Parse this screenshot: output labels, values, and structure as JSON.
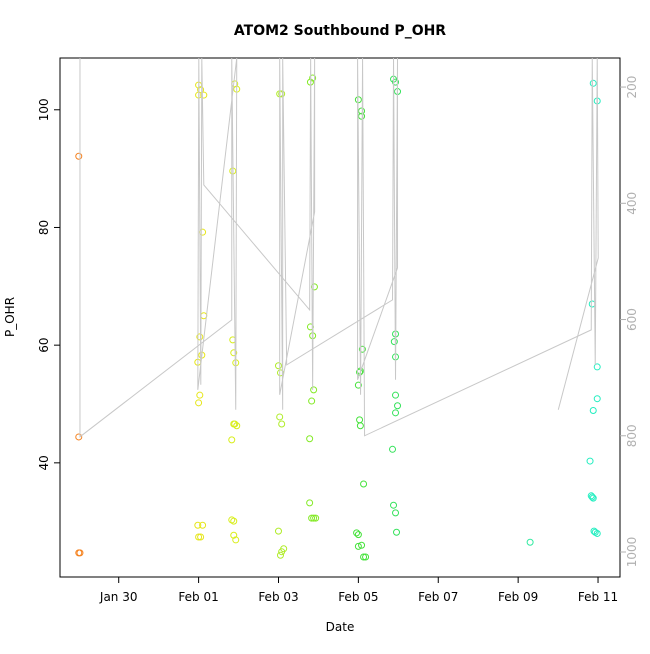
{
  "chart_data": {
    "type": "scatter",
    "title": "ATOM2 Southbound P_OHR",
    "x_label": "Date",
    "y_label": "P_OHR",
    "xlim": [
      28.53,
      42.55
    ],
    "ylim": [
      20.6,
      108.8
    ],
    "y2lim": [
      1043,
      150
    ],
    "xticks": [
      {
        "value": 30,
        "label": "Jan 30"
      },
      {
        "value": 32,
        "label": "Feb 01"
      },
      {
        "value": 34,
        "label": "Feb 03"
      },
      {
        "value": 36,
        "label": "Feb 05"
      },
      {
        "value": 38,
        "label": "Feb 07"
      },
      {
        "value": 40,
        "label": "Feb 09"
      },
      {
        "value": 42,
        "label": "Feb 11"
      }
    ],
    "yticks": [
      40,
      60,
      80,
      100
    ],
    "y2ticks": [
      200,
      400,
      600,
      800,
      1000
    ],
    "series": [
      {
        "type": "scatter",
        "x": [
          29.0,
          29.0,
          29.0,
          29.03,
          32.0,
          32.05,
          32.0,
          32.13,
          32.1,
          32.13,
          32.03,
          32.08,
          31.98,
          32.03,
          32.0,
          31.98,
          32.1,
          32.0,
          32.05,
          32.905,
          32.955,
          32.855,
          32.855,
          32.88,
          32.93,
          32.88,
          32.955,
          32.905,
          32.83,
          32.83,
          32.88,
          32.88,
          32.93,
          34.03,
          34.08,
          34.0,
          34.05,
          34.03,
          34.08,
          34.0,
          34.08,
          34.13,
          34.05,
          34.8,
          34.855,
          34.9,
          34.8,
          34.855,
          34.88,
          34.83,
          34.78,
          34.78,
          34.83,
          34.88,
          34.93,
          36.0,
          36.08,
          36.08,
          36.1,
          36.05,
          36.03,
          36.0,
          36.03,
          36.05,
          36.13,
          35.955,
          36.0,
          36.08,
          36.0,
          36.13,
          36.18,
          36.88,
          36.93,
          36.98,
          36.93,
          36.9,
          36.93,
          36.93,
          36.98,
          36.93,
          36.855,
          36.88,
          36.93,
          36.955,
          40.3,
          41.88,
          41.98,
          41.855,
          41.98,
          41.98,
          41.88,
          41.8,
          41.83,
          41.855,
          41.88,
          41.9,
          41.93,
          41.98
        ],
        "values": [
          92.1,
          44.4,
          24.7,
          24.7,
          104.2,
          103.4,
          102.5,
          102.5,
          79.2,
          65.0,
          61.4,
          58.3,
          57.1,
          51.5,
          50.2,
          29.4,
          29.4,
          27.4,
          27.4,
          104.4,
          103.5,
          89.6,
          60.9,
          58.7,
          57.0,
          46.6,
          46.3,
          46.6,
          43.9,
          30.3,
          30.1,
          27.7,
          26.9,
          102.7,
          102.7,
          56.5,
          55.3,
          47.8,
          46.6,
          28.4,
          24.9,
          25.4,
          24.3,
          104.7,
          105.4,
          69.9,
          63.1,
          61.6,
          52.4,
          50.5,
          44.1,
          33.2,
          30.6,
          30.6,
          30.6,
          101.7,
          99.8,
          98.9,
          59.3,
          55.6,
          55.4,
          53.2,
          47.3,
          46.3,
          36.4,
          28.1,
          27.8,
          26.0,
          25.8,
          24.0,
          24.0,
          105.2,
          104.7,
          103.1,
          61.9,
          60.6,
          58.0,
          51.5,
          49.7,
          48.5,
          42.3,
          32.8,
          31.5,
          28.2,
          26.5,
          104.5,
          101.5,
          67.0,
          56.3,
          50.9,
          48.9,
          40.3,
          34.4,
          34.2,
          34.0,
          28.4,
          28.2,
          28.0
        ],
        "colors": [
          "#f5821f",
          "#f5821f",
          "#f5821f",
          "#f5821f",
          "#e6e61a",
          "#e6e61a",
          "#e6e61a",
          "#e6e61a",
          "#e6e61a",
          "#e6e61a",
          "#e6e61a",
          "#e6e61a",
          "#e6e61a",
          "#e6e61a",
          "#e6e61a",
          "#e6e61a",
          "#e6e61a",
          "#e6e61a",
          "#e6e61a",
          "#d8ee1a",
          "#d8ee1a",
          "#d8ee1a",
          "#d8ee1a",
          "#d8ee1a",
          "#d8ee1a",
          "#d8ee1a",
          "#d8ee1a",
          "#d8ee1a",
          "#d8ee1a",
          "#d8ee1a",
          "#d8ee1a",
          "#d8ee1a",
          "#d8ee1a",
          "#b0ec2a",
          "#b0ec2a",
          "#b0ec2a",
          "#b0ec2a",
          "#b0ec2a",
          "#b0ec2a",
          "#b0ec2a",
          "#b0ec2a",
          "#b0ec2a",
          "#b0ec2a",
          "#84ea26",
          "#84ea26",
          "#84ea26",
          "#84ea26",
          "#84ea26",
          "#84ea26",
          "#84ea26",
          "#84ea26",
          "#84ea26",
          "#84ea26",
          "#84ea26",
          "#84ea26",
          "#44e23a",
          "#44e23a",
          "#44e23a",
          "#44e23a",
          "#44e23a",
          "#44e23a",
          "#44e23a",
          "#44e23a",
          "#44e23a",
          "#44e23a",
          "#44e23a",
          "#44e23a",
          "#44e23a",
          "#44e23a",
          "#44e23a",
          "#44e23a",
          "#34e25a",
          "#34e25a",
          "#34e25a",
          "#34e25a",
          "#34e25a",
          "#34e25a",
          "#34e25a",
          "#34e25a",
          "#34e25a",
          "#34e25a",
          "#34e25a",
          "#34e25a",
          "#34e25a",
          "#30eaa0",
          "#22eec0",
          "#22eec0",
          "#22eec0",
          "#22eec0",
          "#22eec0",
          "#22eec0",
          "#22eec0",
          "#22eec0",
          "#22eec0",
          "#22eec0",
          "#22eec0",
          "#22eec0",
          "#22eec0"
        ]
      },
      {
        "type": "line",
        "axis": "y2",
        "color": "#c8c8c8",
        "x": [
          29.03,
          29.03,
          32.83,
          32.83,
          32.93,
          32.955,
          31.98,
          32.005,
          32.055,
          32.08,
          32.13,
          34.78,
          34.805,
          34.855,
          34.905,
          34.905,
          34.03,
          34.03,
          34.105,
          34.105,
          34.205,
          36.855,
          36.88,
          36.93,
          36.98,
          36.98,
          35.98,
          35.98,
          36.055,
          36.105,
          36.155,
          41.83,
          41.855,
          41.93,
          41.98,
          42.005,
          41.005
        ],
        "values": [
          150,
          801.8,
          600.6,
          150,
          755.3,
          150,
          721,
          150,
          712.3,
          150,
          368.4,
          583.4,
          150,
          721,
          150,
          414.8,
          729.5,
          150,
          755.3,
          150,
          678,
          566.2,
          150,
          703.7,
          150,
          511.1,
          703.7,
          150,
          729.5,
          150,
          800,
          617.8,
          150,
          678,
          150,
          494,
          755.3
        ]
      }
    ]
  }
}
